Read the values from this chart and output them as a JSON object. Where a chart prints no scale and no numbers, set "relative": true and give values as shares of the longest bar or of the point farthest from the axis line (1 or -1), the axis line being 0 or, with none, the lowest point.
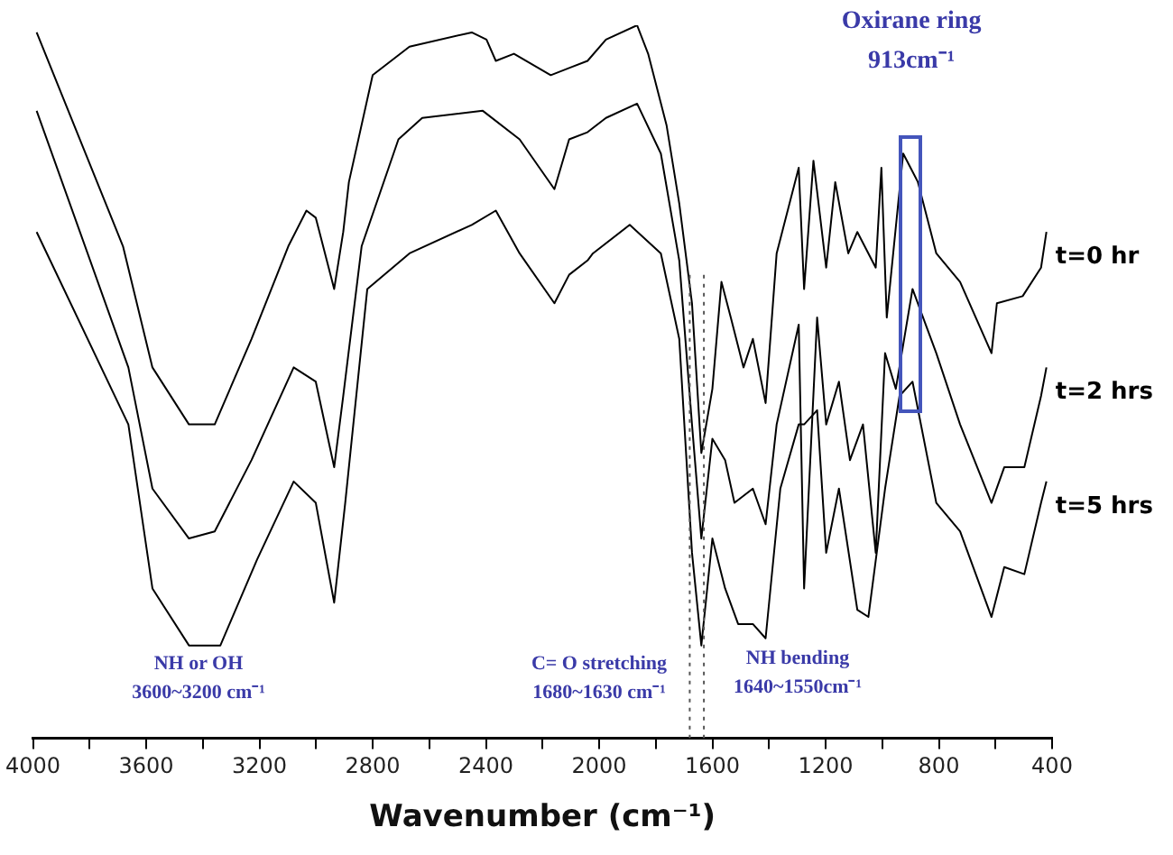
{
  "chart_data": {
    "type": "line",
    "relative": true,
    "xlabel": "Wavenumber (cm⁻¹)",
    "xlim": [
      4000,
      400
    ],
    "xticks": [
      4000,
      {
        "value": 3800,
        "label": null
      },
      3600,
      {
        "value": 3400,
        "label": null
      },
      3200,
      {
        "value": 3000,
        "label": null
      },
      2800,
      {
        "value": 2600,
        "label": null
      },
      2400,
      {
        "value": 2200,
        "label": null
      },
      2000,
      {
        "value": 1800,
        "label": null
      },
      1600,
      {
        "value": 1400,
        "label": null
      },
      1200,
      {
        "value": 1000,
        "label": null
      },
      800,
      {
        "value": 600,
        "label": null
      },
      400
    ],
    "marker": "none",
    "line_style": "solid",
    "legend": false,
    "grid": false,
    "tick_labels": "x",
    "series": [
      {
        "name": "t=0 hr",
        "color": "#000000",
        "x": [
          3987,
          3682,
          3578,
          3449,
          3358,
          3228,
          3098,
          3034,
          3001,
          2936,
          2904,
          2884,
          2800,
          2670,
          2450,
          2398,
          2365,
          2301,
          2171,
          2106,
          2041,
          1976,
          1866,
          1827,
          1762,
          1717,
          1672,
          1639,
          1600,
          1568,
          1535,
          1490,
          1457,
          1412,
          1373,
          1295,
          1276,
          1243,
          1198,
          1166,
          1120,
          1088,
          1023,
          1003,
          984,
          926,
          874,
          809,
          725,
          614,
          595,
          504,
          439,
          420
        ],
        "values": [
          0.99,
          0.69,
          0.52,
          0.44,
          0.44,
          0.56,
          0.69,
          0.74,
          0.73,
          0.63,
          0.71,
          0.78,
          0.93,
          0.97,
          0.99,
          0.98,
          0.95,
          0.96,
          0.93,
          0.94,
          0.95,
          0.98,
          1,
          0.96,
          0.86,
          0.75,
          0.61,
          0.4,
          0.49,
          0.64,
          0.59,
          0.52,
          0.56,
          0.47,
          0.68,
          0.8,
          0.63,
          0.81,
          0.66,
          0.78,
          0.68,
          0.71,
          0.66,
          0.8,
          0.59,
          0.82,
          0.78,
          0.68,
          0.64,
          0.54,
          0.61,
          0.62,
          0.66,
          0.71
        ]
      },
      {
        "name": "t=2 hrs",
        "color": "#000000",
        "x": [
          3987,
          3663,
          3578,
          3449,
          3358,
          3228,
          3079,
          3001,
          2936,
          2904,
          2839,
          2709,
          2625,
          2411,
          2281,
          2158,
          2106,
          2041,
          1976,
          1866,
          1782,
          1717,
          1672,
          1639,
          1600,
          1555,
          1522,
          1457,
          1412,
          1373,
          1295,
          1276,
          1230,
          1198,
          1153,
          1114,
          1068,
          1023,
          990,
          952,
          893,
          809,
          725,
          614,
          569,
          498,
          439,
          420
        ],
        "values": [
          0.88,
          0.52,
          0.35,
          0.28,
          0.29,
          0.39,
          0.52,
          0.5,
          0.38,
          0.48,
          0.69,
          0.84,
          0.87,
          0.88,
          0.84,
          0.77,
          0.84,
          0.85,
          0.87,
          0.89,
          0.82,
          0.67,
          0.44,
          0.28,
          0.42,
          0.39,
          0.33,
          0.35,
          0.3,
          0.44,
          0.58,
          0.21,
          0.59,
          0.44,
          0.5,
          0.39,
          0.44,
          0.26,
          0.54,
          0.49,
          0.63,
          0.54,
          0.44,
          0.33,
          0.38,
          0.38,
          0.48,
          0.52
        ]
      },
      {
        "name": "t=5 hrs",
        "color": "#000000",
        "x": [
          3987,
          3663,
          3578,
          3449,
          3338,
          3209,
          3079,
          3001,
          2936,
          2897,
          2819,
          2670,
          2450,
          2365,
          2281,
          2158,
          2106,
          2041,
          2022,
          1892,
          1782,
          1717,
          1672,
          1639,
          1600,
          1555,
          1509,
          1457,
          1412,
          1360,
          1295,
          1276,
          1230,
          1198,
          1153,
          1088,
          1049,
          990,
          939,
          893,
          809,
          725,
          614,
          569,
          498,
          439,
          420
        ],
        "values": [
          0.71,
          0.44,
          0.21,
          0.13,
          0.13,
          0.25,
          0.36,
          0.33,
          0.19,
          0.33,
          0.63,
          0.68,
          0.72,
          0.74,
          0.68,
          0.61,
          0.65,
          0.67,
          0.68,
          0.72,
          0.68,
          0.56,
          0.26,
          0.13,
          0.28,
          0.21,
          0.16,
          0.16,
          0.14,
          0.35,
          0.44,
          0.44,
          0.46,
          0.26,
          0.35,
          0.18,
          0.17,
          0.35,
          0.48,
          0.5,
          0.33,
          0.29,
          0.17,
          0.24,
          0.23,
          0.33,
          0.36
        ]
      }
    ],
    "ref_lines": [
      {
        "axis": "x",
        "value": 1680,
        "color": "#555555",
        "line_style": "dotted"
      },
      {
        "axis": "x",
        "value": 1630,
        "color": "#555555",
        "line_style": "dotted"
      }
    ],
    "annotations": [
      "NH or OH\n3600~3200 cm⁻¹",
      "C= O stretching\n1680~1630 cm⁻¹",
      "NH bending\n1640~1550cm⁻¹",
      "Oxirane ring\n913cm⁻¹"
    ]
  }
}
